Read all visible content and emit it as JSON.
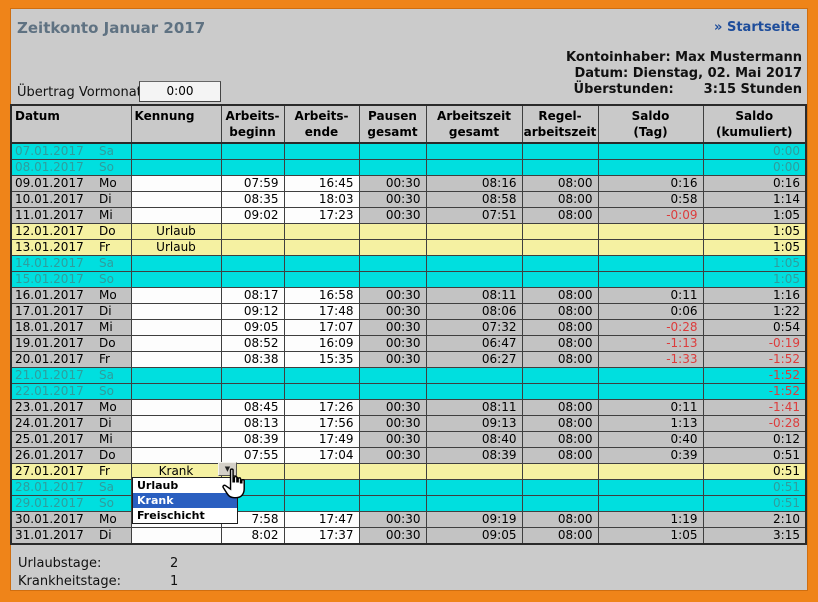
{
  "colors": {
    "frame_orange": "#ef8419",
    "page_bg": "#cbcbcb",
    "weekend_bg": "#00dfdf",
    "vacation_bg": "#f5f1a2",
    "computed_cell_bg": "#c3c3c3",
    "input_cell_bg": "#fdfdfd",
    "negative_red": "#dc3c3c",
    "weekend_text": "#2f9d9d",
    "selection_blue": "#2a5fc0",
    "title_text": "#5f7282",
    "link_blue": "#1e4d9b"
  },
  "header": {
    "title": "Zeitkonto Januar 2017",
    "home_link": "» Startseite"
  },
  "account": {
    "owner_line": "Kontoinhaber: Max Mustermann",
    "date_line": "Datum: Dienstag, 02. Mai 2017",
    "overtime_label": "Überstunden:",
    "overtime_value": "3:15 Stunden"
  },
  "carryover": {
    "label": "Übertrag Vormonat:",
    "value": "0:00"
  },
  "table": {
    "columns": [
      {
        "line1": "Datum",
        "line2": ""
      },
      {
        "line1": "Kennung",
        "line2": ""
      },
      {
        "line1": "Arbeits-",
        "line2": "beginn"
      },
      {
        "line1": "Arbeits-",
        "line2": "ende"
      },
      {
        "line1": "Pausen",
        "line2": "gesamt"
      },
      {
        "line1": "Arbeitszeit",
        "line2": "gesamt"
      },
      {
        "line1": "Regel-",
        "line2": "arbeitszeit"
      },
      {
        "line1": "Saldo",
        "line2": "(Tag)"
      },
      {
        "line1": "Saldo",
        "line2": "(kumuliert)"
      }
    ],
    "rows": [
      {
        "date": "07.01.2017",
        "day": "Sa",
        "type": "weekend",
        "kennung": "",
        "beginn": "",
        "ende": "",
        "pausen": "",
        "arbeitszeit": "",
        "regel": "",
        "saldo_tag": "",
        "saldo_kum": "0:00"
      },
      {
        "date": "08.01.2017",
        "day": "So",
        "type": "weekend",
        "kennung": "",
        "beginn": "",
        "ende": "",
        "pausen": "",
        "arbeitszeit": "",
        "regel": "",
        "saldo_tag": "",
        "saldo_kum": "0:00"
      },
      {
        "date": "09.01.2017",
        "day": "Mo",
        "type": "work",
        "kennung": "",
        "beginn": "07:59",
        "ende": "16:45",
        "pausen": "00:30",
        "arbeitszeit": "08:16",
        "regel": "08:00",
        "saldo_tag": "0:16",
        "saldo_kum": "0:16"
      },
      {
        "date": "10.01.2017",
        "day": "Di",
        "type": "work",
        "kennung": "",
        "beginn": "08:35",
        "ende": "18:03",
        "pausen": "00:30",
        "arbeitszeit": "08:58",
        "regel": "08:00",
        "saldo_tag": "0:58",
        "saldo_kum": "1:14"
      },
      {
        "date": "11.01.2017",
        "day": "Mi",
        "type": "work",
        "kennung": "",
        "beginn": "09:02",
        "ende": "17:23",
        "pausen": "00:30",
        "arbeitszeit": "07:51",
        "regel": "08:00",
        "saldo_tag": "-0:09",
        "saldo_kum": "1:05"
      },
      {
        "date": "12.01.2017",
        "day": "Do",
        "type": "vacation",
        "kennung": "Urlaub",
        "beginn": "",
        "ende": "",
        "pausen": "",
        "arbeitszeit": "",
        "regel": "",
        "saldo_tag": "",
        "saldo_kum": "1:05"
      },
      {
        "date": "13.01.2017",
        "day": "Fr",
        "type": "vacation",
        "kennung": "Urlaub",
        "beginn": "",
        "ende": "",
        "pausen": "",
        "arbeitszeit": "",
        "regel": "",
        "saldo_tag": "",
        "saldo_kum": "1:05"
      },
      {
        "date": "14.01.2017",
        "day": "Sa",
        "type": "weekend",
        "kennung": "",
        "beginn": "",
        "ende": "",
        "pausen": "",
        "arbeitszeit": "",
        "regel": "",
        "saldo_tag": "",
        "saldo_kum": "1:05"
      },
      {
        "date": "15.01.2017",
        "day": "So",
        "type": "weekend",
        "kennung": "",
        "beginn": "",
        "ende": "",
        "pausen": "",
        "arbeitszeit": "",
        "regel": "",
        "saldo_tag": "",
        "saldo_kum": "1:05"
      },
      {
        "date": "16.01.2017",
        "day": "Mo",
        "type": "work",
        "kennung": "",
        "beginn": "08:17",
        "ende": "16:58",
        "pausen": "00:30",
        "arbeitszeit": "08:11",
        "regel": "08:00",
        "saldo_tag": "0:11",
        "saldo_kum": "1:16"
      },
      {
        "date": "17.01.2017",
        "day": "Di",
        "type": "work",
        "kennung": "",
        "beginn": "09:12",
        "ende": "17:48",
        "pausen": "00:30",
        "arbeitszeit": "08:06",
        "regel": "08:00",
        "saldo_tag": "0:06",
        "saldo_kum": "1:22"
      },
      {
        "date": "18.01.2017",
        "day": "Mi",
        "type": "work",
        "kennung": "",
        "beginn": "09:05",
        "ende": "17:07",
        "pausen": "00:30",
        "arbeitszeit": "07:32",
        "regel": "08:00",
        "saldo_tag": "-0:28",
        "saldo_kum": "0:54"
      },
      {
        "date": "19.01.2017",
        "day": "Do",
        "type": "work",
        "kennung": "",
        "beginn": "08:52",
        "ende": "16:09",
        "pausen": "00:30",
        "arbeitszeit": "06:47",
        "regel": "08:00",
        "saldo_tag": "-1:13",
        "saldo_kum": "-0:19"
      },
      {
        "date": "20.01.2017",
        "day": "Fr",
        "type": "work",
        "kennung": "",
        "beginn": "08:38",
        "ende": "15:35",
        "pausen": "00:30",
        "arbeitszeit": "06:27",
        "regel": "08:00",
        "saldo_tag": "-1:33",
        "saldo_kum": "-1:52"
      },
      {
        "date": "21.01.2017",
        "day": "Sa",
        "type": "weekend",
        "kennung": "",
        "beginn": "",
        "ende": "",
        "pausen": "",
        "arbeitszeit": "",
        "regel": "",
        "saldo_tag": "",
        "saldo_kum": "-1:52"
      },
      {
        "date": "22.01.2017",
        "day": "So",
        "type": "weekend",
        "kennung": "",
        "beginn": "",
        "ende": "",
        "pausen": "",
        "arbeitszeit": "",
        "regel": "",
        "saldo_tag": "",
        "saldo_kum": "-1:52"
      },
      {
        "date": "23.01.2017",
        "day": "Mo",
        "type": "work",
        "kennung": "",
        "beginn": "08:45",
        "ende": "17:26",
        "pausen": "00:30",
        "arbeitszeit": "08:11",
        "regel": "08:00",
        "saldo_tag": "0:11",
        "saldo_kum": "-1:41"
      },
      {
        "date": "24.01.2017",
        "day": "Di",
        "type": "work",
        "kennung": "",
        "beginn": "08:13",
        "ende": "17:56",
        "pausen": "00:30",
        "arbeitszeit": "09:13",
        "regel": "08:00",
        "saldo_tag": "1:13",
        "saldo_kum": "-0:28"
      },
      {
        "date": "25.01.2017",
        "day": "Mi",
        "type": "work",
        "kennung": "",
        "beginn": "08:39",
        "ende": "17:49",
        "pausen": "00:30",
        "arbeitszeit": "08:40",
        "regel": "08:00",
        "saldo_tag": "0:40",
        "saldo_kum": "0:12"
      },
      {
        "date": "26.01.2017",
        "day": "Do",
        "type": "work",
        "kennung": "",
        "beginn": "07:55",
        "ende": "17:04",
        "pausen": "00:30",
        "arbeitszeit": "08:39",
        "regel": "08:00",
        "saldo_tag": "0:39",
        "saldo_kum": "0:51"
      },
      {
        "date": "27.01.2017",
        "day": "Fr",
        "type": "sick",
        "kennung": "Krank",
        "beginn": "",
        "ende": "",
        "pausen": "",
        "arbeitszeit": "",
        "regel": "",
        "saldo_tag": "",
        "saldo_kum": "0:51",
        "has_dropdown": true
      },
      {
        "date": "28.01.2017",
        "day": "Sa",
        "type": "weekend",
        "kennung": "",
        "beginn": "",
        "ende": "",
        "pausen": "",
        "arbeitszeit": "",
        "regel": "",
        "saldo_tag": "",
        "saldo_kum": "0:51"
      },
      {
        "date": "29.01.2017",
        "day": "So",
        "type": "weekend",
        "kennung": "",
        "beginn": "",
        "ende": "",
        "pausen": "",
        "arbeitszeit": "",
        "regel": "",
        "saldo_tag": "",
        "saldo_kum": "0:51"
      },
      {
        "date": "30.01.2017",
        "day": "Mo",
        "type": "work",
        "kennung": "",
        "beginn": "7:58",
        "ende": "17:47",
        "pausen": "00:30",
        "arbeitszeit": "09:19",
        "regel": "08:00",
        "saldo_tag": "1:19",
        "saldo_kum": "2:10"
      },
      {
        "date": "31.01.2017",
        "day": "Di",
        "type": "work",
        "kennung": "",
        "beginn": "8:02",
        "ende": "17:37",
        "pausen": "00:30",
        "arbeitszeit": "09:05",
        "regel": "08:00",
        "saldo_tag": "1:05",
        "saldo_kum": "3:15"
      }
    ]
  },
  "dropdown": {
    "arrow_icon": "▼",
    "options": [
      {
        "label": "Urlaub",
        "selected": false
      },
      {
        "label": "Krank",
        "selected": true
      },
      {
        "label": "Freischicht",
        "selected": false
      }
    ]
  },
  "summary": {
    "vacation_label": "Urlaubstage:",
    "vacation_value": "2",
    "sick_label": "Krankheitstage:",
    "sick_value": "1"
  }
}
